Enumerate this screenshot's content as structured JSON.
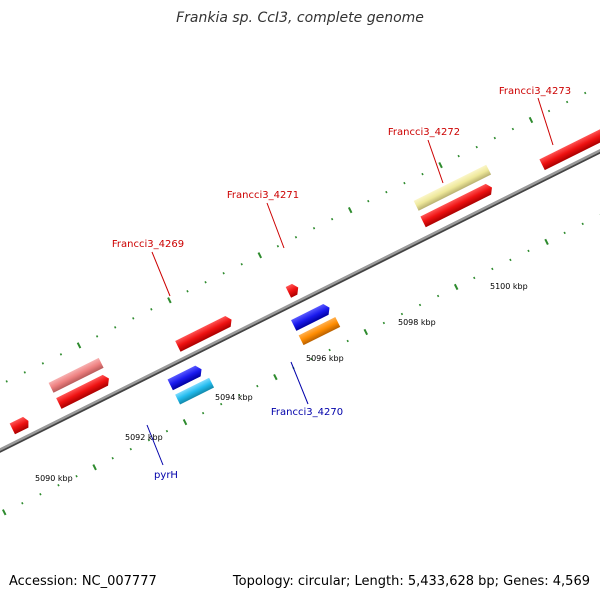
{
  "title": "Frankia sp. CcI3, complete genome",
  "footer": {
    "accession": "Accession: NC_007777",
    "summary": "Topology: circular; Length: 5,433,628 bp; Genes: 4,569"
  },
  "colors": {
    "backbone": "#808080",
    "tick": "#2e8b2e",
    "label_red": "#cc0000",
    "label_blue": "#0000aa",
    "gene_red": "#ee1111",
    "gene_pink": "#ee8080",
    "gene_yellow": "#eee89a",
    "gene_blue": "#1a1aee",
    "gene_cyan": "#22bbee",
    "gene_orange": "#ff8c00"
  },
  "scale_labels": [
    "5090 kbp",
    "5092 kbp",
    "5094 kbp",
    "5096 kbp",
    "5098 kbp",
    "5100 kbp"
  ],
  "gene_labels": [
    "Francci3_4269",
    "Francci3_4271",
    "Francci3_4272",
    "Francci3_4273",
    "Francci3_4270",
    "pyrH"
  ]
}
